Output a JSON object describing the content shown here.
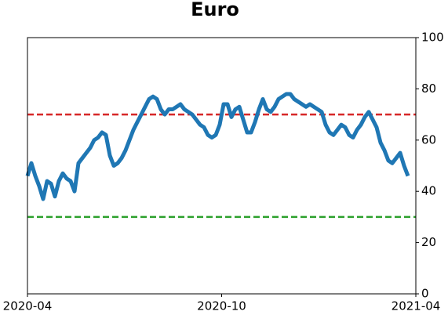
{
  "chart_data": {
    "type": "line",
    "title": "Euro",
    "xticks": [
      "2020-04",
      "2020-10",
      "2021-04"
    ],
    "series": [
      {
        "color": "#1f77b4",
        "values": [
          46,
          51,
          46,
          42,
          37,
          44,
          43,
          38,
          44,
          47,
          45,
          44,
          40,
          51,
          53,
          55,
          57,
          60,
          61,
          63,
          62,
          54,
          50,
          51,
          53,
          56,
          60,
          64,
          67,
          70,
          73,
          76,
          77,
          76,
          72,
          70,
          72,
          72,
          73,
          74,
          72,
          71,
          70,
          68,
          66,
          65,
          62,
          61,
          62,
          66,
          74,
          74,
          69,
          72,
          73,
          68,
          63,
          63,
          67,
          72,
          76,
          72,
          71,
          73,
          76,
          77,
          78,
          78,
          76,
          75,
          74,
          73,
          74,
          73,
          72,
          71,
          66,
          63,
          62,
          64,
          66,
          65,
          62,
          61,
          64,
          66,
          69,
          71,
          68,
          65,
          59,
          56,
          52,
          51,
          53,
          55,
          50,
          46,
          null,
          null
        ]
      }
    ],
    "ylim": [
      0,
      100
    ],
    "yticks": [
      0,
      20,
      40,
      60,
      80,
      100
    ],
    "reference_lines": [
      {
        "value": 70,
        "color": "#d62728"
      },
      {
        "value": 30,
        "color": "#2ca02c"
      }
    ]
  }
}
